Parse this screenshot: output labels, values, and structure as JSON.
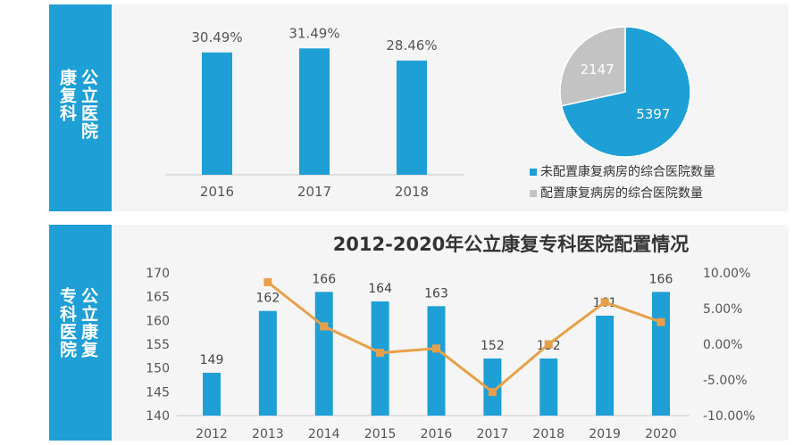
{
  "top_section": {
    "side_label_col1": "公立医院",
    "side_label_col2": "康复科"
  },
  "bottom_section": {
    "side_label_col1": "公立康复",
    "side_label_col2": "专科医院"
  },
  "colors": {
    "side_bar": "#1e9fd6",
    "bar": "#1e9fd6",
    "line": "#e8a048",
    "pie_gray": "#c3c3c3",
    "panel_bg": "#f5f5f5"
  },
  "chart_data": [
    {
      "type": "bar",
      "categories": [
        "2016",
        "2017",
        "2018"
      ],
      "values": [
        30.49,
        31.49,
        28.46
      ],
      "data_labels": [
        "30.49%",
        "31.49%",
        "28.46%"
      ]
    },
    {
      "type": "pie",
      "slices": [
        {
          "label": "未配置康复病房的综合医院数量",
          "value": 5397,
          "color": "#1e9fd6"
        },
        {
          "label": "配置康复病房的综合医院数量",
          "value": 2147,
          "color": "#c3c3c3"
        }
      ],
      "legend_position": "bottom"
    },
    {
      "type": "bar",
      "title": "2012-2020年公立康复专科医院配置情况",
      "categories": [
        "2012",
        "2013",
        "2014",
        "2015",
        "2016",
        "2017",
        "2018",
        "2019",
        "2020"
      ],
      "series": [
        {
          "values": [
            149,
            162,
            166,
            164,
            163,
            152,
            152,
            161,
            166
          ],
          "type": "bar"
        },
        {
          "values": [
            null,
            8.7,
            2.5,
            -1.2,
            -0.6,
            -6.7,
            0.0,
            5.9,
            3.1
          ],
          "type": "line"
        }
      ],
      "ylim": [
        140,
        170
      ],
      "yticks": [
        "140",
        "145",
        "150",
        "155",
        "160",
        "165",
        "170"
      ],
      "y2lim": [
        -10,
        10
      ],
      "y2ticks": [
        "-10.00%",
        "-5.00%",
        "0.00%",
        "5.00%",
        "10.00%"
      ],
      "grid": false
    }
  ]
}
